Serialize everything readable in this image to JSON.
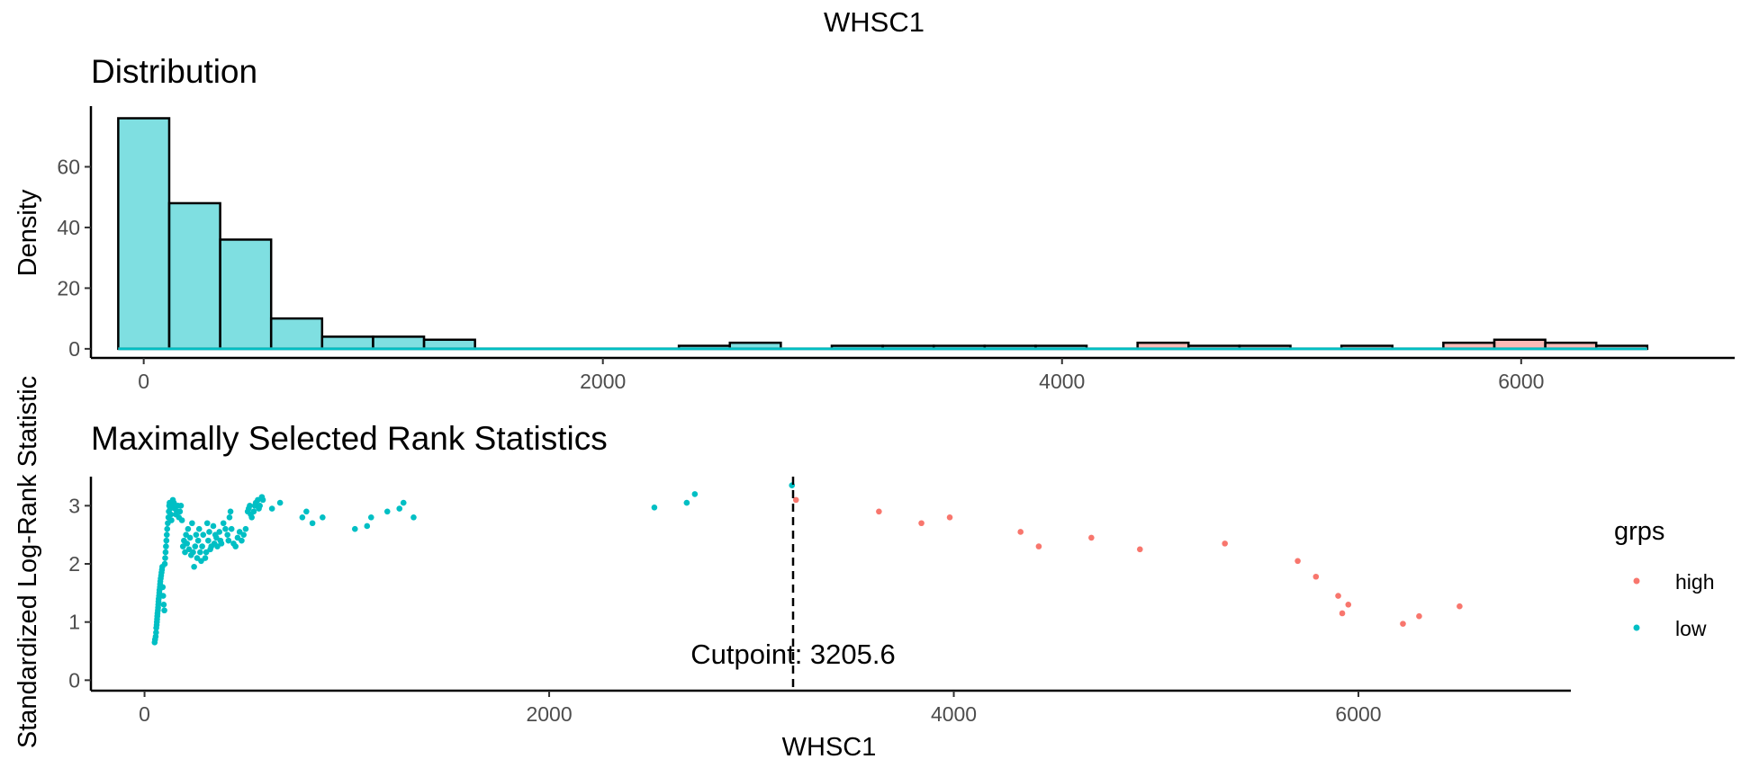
{
  "chart_data": {
    "title": "WHSC1",
    "panels": [
      {
        "type": "histogram",
        "subtitle": "Distribution",
        "xlabel": "",
        "ylabel": "Density",
        "xlim": [
          -230,
          6930
        ],
        "ylim": [
          -3,
          80
        ],
        "xticks": [
          0,
          2000,
          4000,
          6000
        ],
        "yticks": [
          0,
          20,
          40,
          60
        ],
        "grid": false,
        "bin_width": 222,
        "bins_low": [
          {
            "start": -111,
            "value": 76
          },
          {
            "start": 111,
            "value": 48
          },
          {
            "start": 333,
            "value": 36
          },
          {
            "start": 555,
            "value": 10
          },
          {
            "start": 777,
            "value": 4
          },
          {
            "start": 999,
            "value": 4
          },
          {
            "start": 1221,
            "value": 3
          },
          {
            "start": 2331,
            "value": 1
          },
          {
            "start": 2553,
            "value": 2
          },
          {
            "start": 2997,
            "value": 1
          },
          {
            "start": 3219,
            "value": 1
          },
          {
            "start": 3441,
            "value": 1
          },
          {
            "start": 3663,
            "value": 1
          },
          {
            "start": 3885,
            "value": 1
          }
        ],
        "bins_high": [
          {
            "start": 4329,
            "value": 2
          },
          {
            "start": 4551,
            "value": 1
          },
          {
            "start": 4773,
            "value": 1
          },
          {
            "start": 5217,
            "value": 1
          },
          {
            "start": 5661,
            "value": 2
          },
          {
            "start": 5883,
            "value": 3
          },
          {
            "start": 6105,
            "value": 2
          },
          {
            "start": 6327,
            "value": 1
          }
        ],
        "colors": {
          "low": "#00BFC4",
          "high": "#F8766D"
        }
      },
      {
        "type": "scatter",
        "subtitle": "Maximally Selected Rank Statistics",
        "xlabel": "WHSC1",
        "ylabel": "Standardized Log-Rank Statistic",
        "xlim": [
          -265,
          7050
        ],
        "ylim": [
          -0.18,
          3.5
        ],
        "xticks": [
          0,
          2000,
          4000,
          6000
        ],
        "yticks": [
          0,
          1,
          2,
          3
        ],
        "grid": false,
        "cutpoint": 3205.6,
        "cutpoint_label": "Cutpoint: 3205.6",
        "legend": {
          "title": "grps",
          "position": "right",
          "entries": [
            {
              "label": "high",
              "color": "#F8766D"
            },
            {
              "label": "low",
              "color": "#00BFC4"
            }
          ]
        },
        "series": [
          {
            "name": "low",
            "color": "#00BFC4",
            "points": [
              [
                50,
                0.65
              ],
              [
                52,
                0.7
              ],
              [
                55,
                0.75
              ],
              [
                57,
                0.82
              ],
              [
                58,
                0.9
              ],
              [
                60,
                0.95
              ],
              [
                61,
                1.0
              ],
              [
                62,
                1.05
              ],
              [
                63,
                1.1
              ],
              [
                64,
                1.15
              ],
              [
                66,
                1.2
              ],
              [
                67,
                1.25
              ],
              [
                68,
                1.3
              ],
              [
                69,
                1.35
              ],
              [
                70,
                1.4
              ],
              [
                72,
                1.45
              ],
              [
                73,
                1.5
              ],
              [
                74,
                1.55
              ],
              [
                76,
                1.6
              ],
              [
                77,
                1.65
              ],
              [
                78,
                1.7
              ],
              [
                80,
                1.75
              ],
              [
                82,
                1.8
              ],
              [
                84,
                1.85
              ],
              [
                86,
                1.9
              ],
              [
                88,
                1.95
              ],
              [
                90,
                1.6
              ],
              [
                92,
                1.45
              ],
              [
                95,
                1.3
              ],
              [
                98,
                1.2
              ],
              [
                100,
                2.0
              ],
              [
                102,
                2.1
              ],
              [
                104,
                2.2
              ],
              [
                106,
                2.3
              ],
              [
                108,
                2.4
              ],
              [
                110,
                2.5
              ],
              [
                112,
                2.6
              ],
              [
                115,
                2.7
              ],
              [
                118,
                2.8
              ],
              [
                120,
                2.9
              ],
              [
                122,
                3.0
              ],
              [
                124,
                3.05
              ],
              [
                127,
                2.95
              ],
              [
                130,
                2.85
              ],
              [
                133,
                2.75
              ],
              [
                136,
                3.0
              ],
              [
                140,
                3.1
              ],
              [
                145,
                3.05
              ],
              [
                150,
                2.95
              ],
              [
                155,
                2.85
              ],
              [
                160,
                2.9
              ],
              [
                165,
                3.0
              ],
              [
                170,
                2.8
              ],
              [
                175,
                2.9
              ],
              [
                180,
                3.0
              ],
              [
                185,
                2.75
              ],
              [
                190,
                2.3
              ],
              [
                195,
                2.4
              ],
              [
                200,
                2.2
              ],
              [
                205,
                2.5
              ],
              [
                210,
                2.35
              ],
              [
                215,
                2.6
              ],
              [
                220,
                2.25
              ],
              [
                225,
                2.45
              ],
              [
                230,
                2.15
              ],
              [
                235,
                2.7
              ],
              [
                240,
                2.2
              ],
              [
                245,
                1.95
              ],
              [
                250,
                2.3
              ],
              [
                255,
                2.5
              ],
              [
                260,
                2.1
              ],
              [
                265,
                2.4
              ],
              [
                270,
                2.6
              ],
              [
                275,
                2.2
              ],
              [
                280,
                2.05
              ],
              [
                285,
                2.3
              ],
              [
                290,
                2.5
              ],
              [
                300,
                2.1
              ],
              [
                305,
                2.2
              ],
              [
                310,
                2.7
              ],
              [
                315,
                2.4
              ],
              [
                320,
                2.55
              ],
              [
                325,
                2.25
              ],
              [
                330,
                2.3
              ],
              [
                340,
                2.65
              ],
              [
                345,
                2.35
              ],
              [
                350,
                2.5
              ],
              [
                355,
                2.45
              ],
              [
                360,
                2.3
              ],
              [
                370,
                2.55
              ],
              [
                375,
                2.4
              ],
              [
                380,
                2.35
              ],
              [
                390,
                2.7
              ],
              [
                400,
                2.6
              ],
              [
                410,
                2.5
              ],
              [
                415,
                2.4
              ],
              [
                420,
                2.8
              ],
              [
                425,
                2.9
              ],
              [
                430,
                2.6
              ],
              [
                440,
                2.35
              ],
              [
                450,
                2.3
              ],
              [
                460,
                2.45
              ],
              [
                470,
                2.55
              ],
              [
                480,
                2.4
              ],
              [
                490,
                2.5
              ],
              [
                500,
                2.6
              ],
              [
                510,
                2.9
              ],
              [
                515,
                2.95
              ],
              [
                520,
                3.0
              ],
              [
                525,
                2.85
              ],
              [
                530,
                2.8
              ],
              [
                540,
                2.9
              ],
              [
                545,
                3.0
              ],
              [
                550,
                3.05
              ],
              [
                560,
                3.1
              ],
              [
                565,
                2.95
              ],
              [
                570,
                3.0
              ],
              [
                580,
                3.15
              ],
              [
                585,
                3.1
              ],
              [
                630,
                2.95
              ],
              [
                670,
                3.05
              ],
              [
                780,
                2.8
              ],
              [
                800,
                2.9
              ],
              [
                830,
                2.7
              ],
              [
                880,
                2.8
              ],
              [
                1040,
                2.6
              ],
              [
                1100,
                2.65
              ],
              [
                1120,
                2.8
              ],
              [
                1200,
                2.9
              ],
              [
                1260,
                2.95
              ],
              [
                1280,
                3.05
              ],
              [
                1330,
                2.8
              ],
              [
                2520,
                2.97
              ],
              [
                2680,
                3.05
              ],
              [
                2720,
                3.2
              ],
              [
                3200,
                3.35
              ]
            ]
          },
          {
            "name": "high",
            "color": "#F8766D",
            "points": [
              [
                3220,
                3.1
              ],
              [
                3630,
                2.9
              ],
              [
                3840,
                2.7
              ],
              [
                3980,
                2.8
              ],
              [
                4330,
                2.55
              ],
              [
                4420,
                2.3
              ],
              [
                4680,
                2.45
              ],
              [
                4920,
                2.25
              ],
              [
                5340,
                2.35
              ],
              [
                5700,
                2.05
              ],
              [
                5790,
                1.78
              ],
              [
                5900,
                1.45
              ],
              [
                5920,
                1.15
              ],
              [
                5950,
                1.3
              ],
              [
                6220,
                0.97
              ],
              [
                6300,
                1.1
              ],
              [
                6500,
                1.27
              ]
            ]
          }
        ]
      }
    ]
  }
}
